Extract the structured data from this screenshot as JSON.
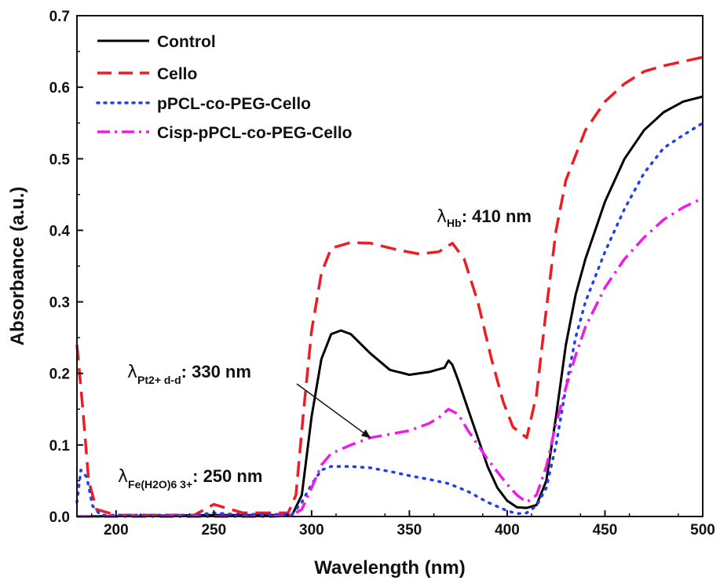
{
  "chart_data": {
    "type": "line",
    "title": "",
    "xlabel": "Wavelength (nm)",
    "ylabel": "Absorbance (a.u.)",
    "xlim": [
      180,
      500
    ],
    "ylim": [
      0,
      0.7
    ],
    "xticks": [
      200,
      250,
      300,
      350,
      400,
      450,
      500
    ],
    "xtick_labels": [
      "200",
      "250",
      "300",
      "350",
      "400",
      "450",
      "500"
    ],
    "yticks": [
      0.0,
      0.1,
      0.2,
      0.3,
      0.4,
      0.5,
      0.6,
      0.7
    ],
    "ytick_labels": [
      "0.0",
      "0.1",
      "0.2",
      "0.3",
      "0.4",
      "0.5",
      "0.6",
      "0.7"
    ],
    "grid": false,
    "legend_position": "top-left",
    "series": [
      {
        "name": "Control",
        "color": "#000000",
        "dash": "solid",
        "points": [
          [
            180,
            0
          ],
          [
            250,
            0.002
          ],
          [
            290,
            0.002
          ],
          [
            295,
            0.03
          ],
          [
            300,
            0.14
          ],
          [
            305,
            0.22
          ],
          [
            310,
            0.255
          ],
          [
            315,
            0.26
          ],
          [
            320,
            0.255
          ],
          [
            330,
            0.228
          ],
          [
            340,
            0.205
          ],
          [
            350,
            0.198
          ],
          [
            360,
            0.202
          ],
          [
            368,
            0.208
          ],
          [
            370,
            0.218
          ],
          [
            372,
            0.212
          ],
          [
            375,
            0.19
          ],
          [
            380,
            0.15
          ],
          [
            385,
            0.11
          ],
          [
            390,
            0.07
          ],
          [
            395,
            0.04
          ],
          [
            400,
            0.022
          ],
          [
            405,
            0.013
          ],
          [
            410,
            0.012
          ],
          [
            415,
            0.016
          ],
          [
            420,
            0.05
          ],
          [
            425,
            0.14
          ],
          [
            430,
            0.24
          ],
          [
            435,
            0.31
          ],
          [
            440,
            0.36
          ],
          [
            450,
            0.44
          ],
          [
            460,
            0.5
          ],
          [
            470,
            0.54
          ],
          [
            480,
            0.565
          ],
          [
            490,
            0.58
          ],
          [
            500,
            0.587
          ]
        ]
      },
      {
        "name": "Cello",
        "color": "#ee1c25",
        "dash": "dashed",
        "points": [
          [
            180,
            0.24
          ],
          [
            183,
            0.15
          ],
          [
            186,
            0.05
          ],
          [
            190,
            0.01
          ],
          [
            200,
            0.002
          ],
          [
            240,
            0.002
          ],
          [
            250,
            0.017
          ],
          [
            256,
            0.012
          ],
          [
            265,
            0.005
          ],
          [
            280,
            0.005
          ],
          [
            288,
            0.005
          ],
          [
            292,
            0.03
          ],
          [
            296,
            0.15
          ],
          [
            300,
            0.26
          ],
          [
            305,
            0.34
          ],
          [
            310,
            0.375
          ],
          [
            320,
            0.383
          ],
          [
            330,
            0.382
          ],
          [
            345,
            0.372
          ],
          [
            355,
            0.367
          ],
          [
            365,
            0.37
          ],
          [
            372,
            0.382
          ],
          [
            378,
            0.36
          ],
          [
            385,
            0.3
          ],
          [
            392,
            0.22
          ],
          [
            398,
            0.16
          ],
          [
            403,
            0.125
          ],
          [
            410,
            0.11
          ],
          [
            415,
            0.17
          ],
          [
            420,
            0.29
          ],
          [
            425,
            0.4
          ],
          [
            430,
            0.47
          ],
          [
            440,
            0.54
          ],
          [
            450,
            0.58
          ],
          [
            460,
            0.605
          ],
          [
            470,
            0.622
          ],
          [
            480,
            0.63
          ],
          [
            490,
            0.636
          ],
          [
            500,
            0.642
          ]
        ]
      },
      {
        "name": "pPCL-co-PEG-Cello",
        "color": "#1f3ff0",
        "dash": "dotted",
        "points": [
          [
            180,
            0.02
          ],
          [
            182,
            0.065
          ],
          [
            185,
            0.055
          ],
          [
            188,
            0.015
          ],
          [
            192,
            0.002
          ],
          [
            240,
            0.002
          ],
          [
            250,
            0.005
          ],
          [
            260,
            0.003
          ],
          [
            290,
            0.003
          ],
          [
            295,
            0.02
          ],
          [
            300,
            0.045
          ],
          [
            305,
            0.065
          ],
          [
            310,
            0.07
          ],
          [
            320,
            0.07
          ],
          [
            330,
            0.068
          ],
          [
            340,
            0.063
          ],
          [
            350,
            0.057
          ],
          [
            360,
            0.052
          ],
          [
            370,
            0.046
          ],
          [
            380,
            0.035
          ],
          [
            390,
            0.02
          ],
          [
            400,
            0.008
          ],
          [
            405,
            0.004
          ],
          [
            410,
            0.005
          ],
          [
            415,
            0.015
          ],
          [
            420,
            0.04
          ],
          [
            425,
            0.1
          ],
          [
            430,
            0.18
          ],
          [
            435,
            0.25
          ],
          [
            440,
            0.3
          ],
          [
            450,
            0.37
          ],
          [
            460,
            0.43
          ],
          [
            470,
            0.48
          ],
          [
            480,
            0.515
          ],
          [
            490,
            0.533
          ],
          [
            500,
            0.55
          ]
        ]
      },
      {
        "name": "Cisp-pPCL-co-PEG-Cello",
        "color": "#ee1ce8",
        "dash": "dashdot",
        "points": [
          [
            180,
            0
          ],
          [
            280,
            0
          ],
          [
            290,
            0.002
          ],
          [
            295,
            0.01
          ],
          [
            300,
            0.04
          ],
          [
            305,
            0.072
          ],
          [
            310,
            0.088
          ],
          [
            320,
            0.1
          ],
          [
            330,
            0.11
          ],
          [
            340,
            0.115
          ],
          [
            350,
            0.12
          ],
          [
            360,
            0.13
          ],
          [
            365,
            0.138
          ],
          [
            370,
            0.15
          ],
          [
            375,
            0.143
          ],
          [
            380,
            0.12
          ],
          [
            390,
            0.08
          ],
          [
            400,
            0.045
          ],
          [
            405,
            0.03
          ],
          [
            410,
            0.02
          ],
          [
            415,
            0.03
          ],
          [
            420,
            0.07
          ],
          [
            425,
            0.13
          ],
          [
            430,
            0.18
          ],
          [
            435,
            0.225
          ],
          [
            440,
            0.265
          ],
          [
            450,
            0.32
          ],
          [
            460,
            0.36
          ],
          [
            470,
            0.39
          ],
          [
            480,
            0.415
          ],
          [
            490,
            0.432
          ],
          [
            500,
            0.445
          ]
        ]
      }
    ],
    "annotations": {
      "hb": {
        "symbol": "λ",
        "sub": "Hb",
        "text": ": 410 nm"
      },
      "pt": {
        "symbol": "λ",
        "sub": "Pt2+ d-d",
        "text": ": 330 nm",
        "arrow_to_data": [
          330,
          0.11
        ]
      },
      "fe": {
        "symbol": "λ",
        "sub": "Fe(H2O)6 3+",
        "text": ": 250 nm"
      }
    }
  }
}
